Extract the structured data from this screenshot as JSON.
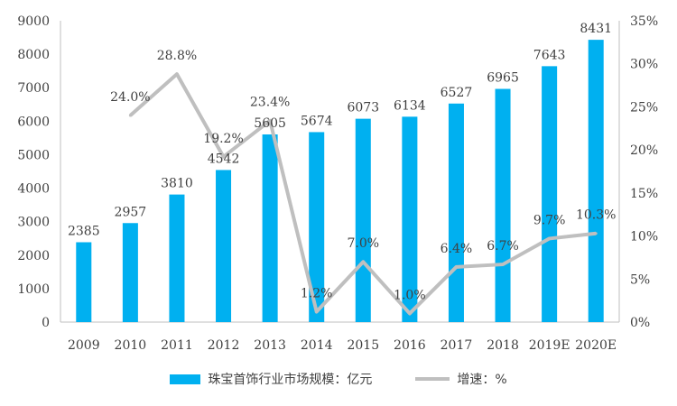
{
  "chart_data": {
    "type": "bar",
    "categories": [
      "2009",
      "2010",
      "2011",
      "2012",
      "2013",
      "2014",
      "2015",
      "2016",
      "2017",
      "2018",
      "2019E",
      "2020E"
    ],
    "series": [
      {
        "name": "珠宝首饰行业市场规模：亿元",
        "type": "bar",
        "axis": "left",
        "color": "#00B0F0",
        "values": [
          2385,
          2957,
          3810,
          4542,
          5605,
          5674,
          6073,
          6134,
          6527,
          6965,
          7643,
          8431
        ],
        "labels": [
          "2385",
          "2957",
          "3810",
          "4542",
          "5605",
          "5674",
          "6073",
          "6134",
          "6527",
          "6965",
          "7643",
          "8431"
        ]
      },
      {
        "name": "增速：%",
        "type": "line",
        "axis": "right",
        "color": "#BFBFBF",
        "values": [
          null,
          24.0,
          28.8,
          19.2,
          23.4,
          1.2,
          7.0,
          1.0,
          6.4,
          6.7,
          9.7,
          10.3
        ],
        "labels": [
          "",
          "24.0%",
          "28.8%",
          "19.2%",
          "23.4%",
          "1.2%",
          "7.0%",
          "1.0%",
          "6.4%",
          "6.7%",
          "9.7%",
          "10.3%"
        ]
      }
    ],
    "y_left": {
      "min": 0,
      "max": 9000,
      "ticks": [
        "0",
        "1000",
        "2000",
        "3000",
        "4000",
        "5000",
        "6000",
        "7000",
        "8000",
        "9000"
      ]
    },
    "y_right": {
      "min": 0,
      "max": 35,
      "ticks": [
        "0%",
        "5%",
        "10%",
        "15%",
        "20%",
        "25%",
        "30%",
        "35%"
      ]
    },
    "grid": false,
    "legend_position": "bottom"
  }
}
